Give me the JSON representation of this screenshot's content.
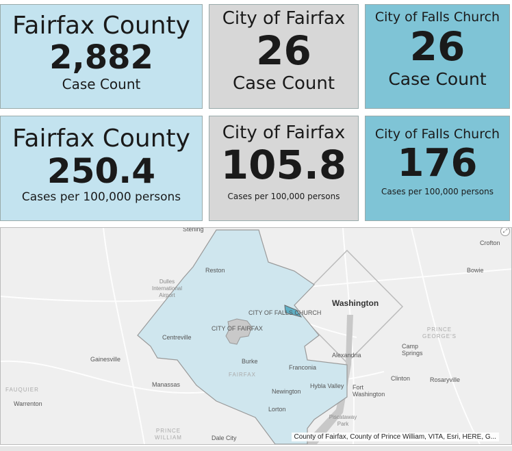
{
  "tiles": [
    {
      "title": "Fairfax County",
      "value": "2,882",
      "label": "Case Count"
    },
    {
      "title": "City of Fairfax",
      "value": "26",
      "label": "Case Count"
    },
    {
      "title": "City of Falls Church",
      "value": "26",
      "label": "Case Count"
    },
    {
      "title": "Fairfax County",
      "value": "250.4",
      "label": "Cases per 100,000 persons"
    },
    {
      "title": "City of Fairfax",
      "value": "105.8",
      "label": "Cases per 100,000 persons"
    },
    {
      "title": "City of Falls Church",
      "value": "176",
      "label": "Cases per 100,000 persons"
    }
  ],
  "colors": {
    "fairfax_county": "#c3e3ef",
    "city_of_fairfax": "#d7d7d7",
    "falls_church": "#7fc4d6"
  },
  "map": {
    "labels": {
      "sterling": "Sterling",
      "reston": "Reston",
      "dulles": "Dulles International Airport",
      "falls_church": "CITY OF FALLS CHURCH",
      "washington": "Washington",
      "city_fairfax": "CITY OF FAIRFAX",
      "centreville": "Centreville",
      "gainesville": "Gainesville",
      "burke": "Burke",
      "franconia": "Franconia",
      "alexandria": "Alexandria",
      "fairfax": "FAIRFAX",
      "manassas": "Manassas",
      "newington": "Newington",
      "hybla": "Hybla Valley",
      "fort_washington": "Fort Washington",
      "clinton": "Clinton",
      "rosaryville": "Rosaryville",
      "camp_springs": "Camp Springs",
      "prince_georges": "PRINCE GEORGE'S",
      "fauquier": "FAUQUIER",
      "warrenton": "Warrenton",
      "lorton": "Lorton",
      "piscataway": "Piscataway Park",
      "prince_william": "PRINCE WILLIAM",
      "dale_city": "Dale City",
      "crofton": "Crofton",
      "bowie": "Bowie"
    },
    "attribution": "County of Fairfax, County of Prince William, VITA, Esri, HERE, G..."
  }
}
